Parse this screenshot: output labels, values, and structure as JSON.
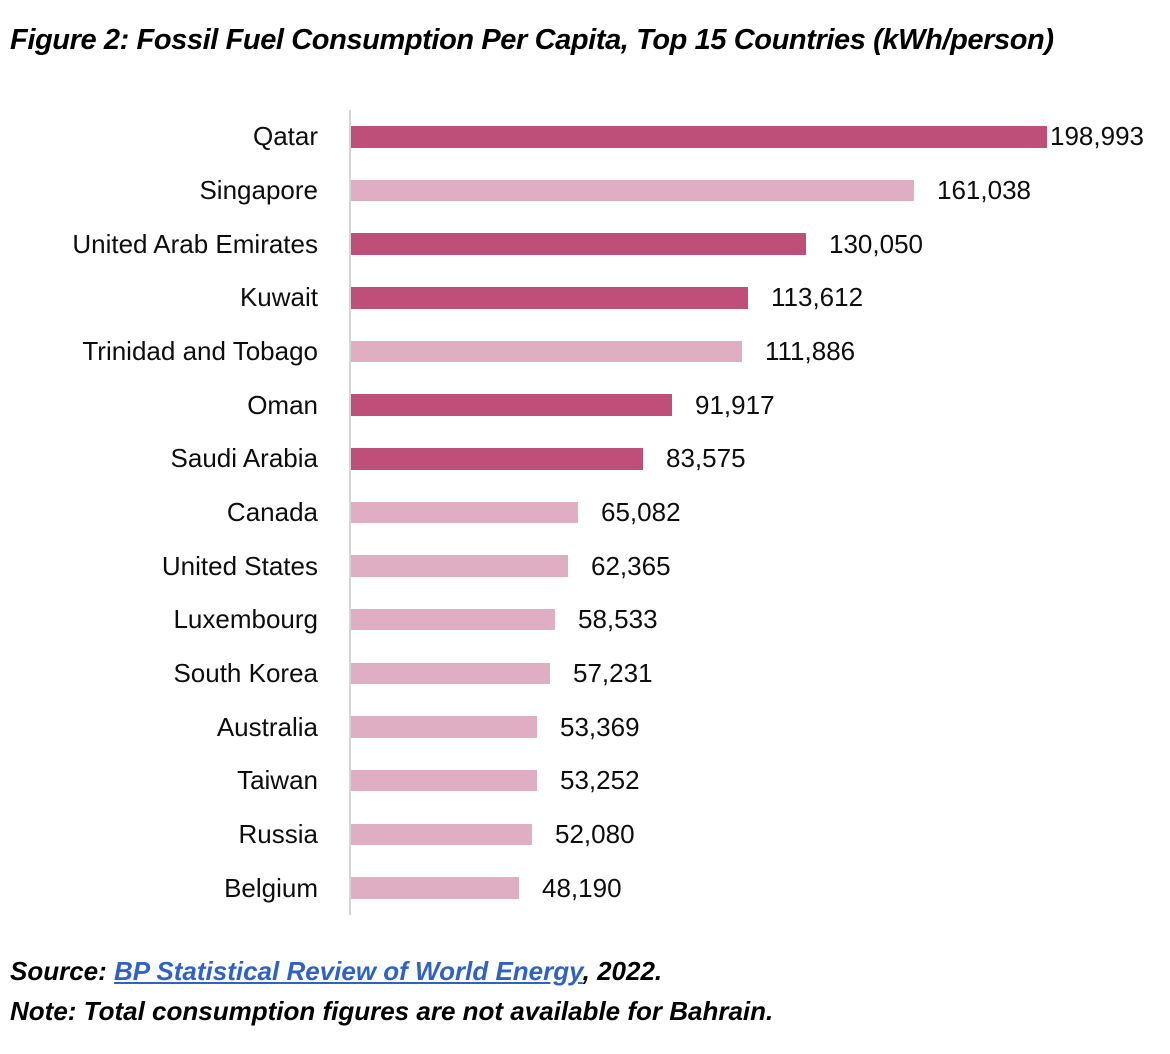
{
  "title": "Figure 2: Fossil Fuel Consumption Per Capita, Top 15 Countries (kWh/person)",
  "chart_data": {
    "type": "bar",
    "orientation": "horizontal",
    "title": "Figure 2: Fossil Fuel Consumption Per Capita, Top 15 Countries (kWh/person)",
    "xlabel": "kWh/person",
    "ylabel": "",
    "xlim": [
      0,
      200000
    ],
    "grid": false,
    "legend": false,
    "axis_line_color": "#d6d4d4",
    "categories": [
      "Qatar",
      "Singapore",
      "United Arab Emirates",
      "Kuwait",
      "Trinidad and Tobago",
      "Oman",
      "Saudi Arabia",
      "Canada",
      "United States",
      "Luxembourg",
      "South Korea",
      "Australia",
      "Taiwan",
      "Russia",
      "Belgium"
    ],
    "values": [
      198993,
      161038,
      130050,
      113612,
      111886,
      91917,
      83575,
      65082,
      62365,
      58533,
      57231,
      53369,
      53252,
      52080,
      48190
    ],
    "value_labels": [
      "198,993",
      "161,038",
      "130,050",
      "113,612",
      "111,886",
      "91,917",
      "83,575",
      "65,082",
      "62,365",
      "58,533",
      "57,231",
      "53,369",
      "53,252",
      "52,080",
      "48,190"
    ],
    "color_group": [
      "dark",
      "light",
      "dark",
      "dark",
      "light",
      "dark",
      "dark",
      "light",
      "light",
      "light",
      "light",
      "light",
      "light",
      "light",
      "light"
    ],
    "colors": {
      "dark": "#bd4f78",
      "light": "#dfaec3"
    }
  },
  "footer": {
    "source_prefix": "Source: ",
    "source_link_text": "BP Statistical Review of World Energy",
    "source_suffix": ", 2022.",
    "source_link_color": "#2f62c4",
    "note": "Note: Total consumption figures are not available for Bahrain."
  }
}
